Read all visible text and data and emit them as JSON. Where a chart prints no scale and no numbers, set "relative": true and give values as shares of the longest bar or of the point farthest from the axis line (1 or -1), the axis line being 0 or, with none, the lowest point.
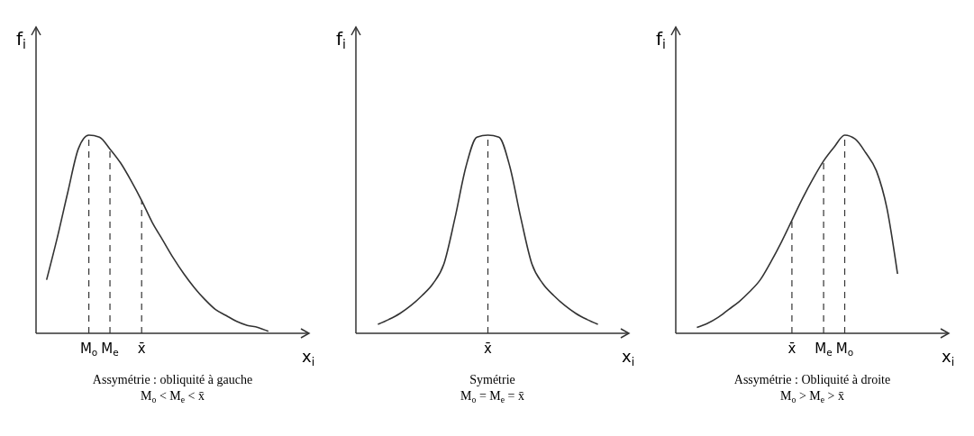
{
  "chart_data": [
    {
      "type": "line",
      "relative": true,
      "xlabel": "x$_{i}$",
      "ylabel": "f$_{i}$",
      "grid": false,
      "marker": "none",
      "line_style": "solid",
      "categories": [
        null,
        null,
        null,
        null,
        null,
        "M$_{o}$",
        null,
        "M$_{e}$",
        null,
        null,
        "x̄",
        null,
        null,
        null,
        null,
        null,
        null,
        null,
        null,
        null,
        null,
        null,
        null,
        null,
        null,
        null
      ],
      "series": [
        {
          "color": "#333333",
          "values": [
            null,
            0.27,
            0.48,
            0.71,
            0.93,
            1,
            0.99,
            0.93,
            0.86,
            0.77,
            0.67,
            0.56,
            0.47,
            0.38,
            0.3,
            0.23,
            0.17,
            0.12,
            0.09,
            0.06,
            0.04,
            0.03,
            0.01,
            null,
            null,
            null
          ]
        }
      ],
      "ref_lines": [
        {
          "axis": "x",
          "value": "M$_{o}$",
          "line_style": "dashed"
        },
        {
          "axis": "x",
          "value": "M$_{e}$",
          "line_style": "dashed"
        },
        {
          "axis": "x",
          "value": "x̄",
          "line_style": "dashed"
        }
      ],
      "annotations": [
        "Assymétrie : obliquité à gauche",
        "M$_{o}$ < M$_{e}$ < x̄"
      ]
    },
    {
      "type": "line",
      "relative": true,
      "xlabel": "x$_{i}$",
      "ylabel": "f$_{i}$",
      "grid": false,
      "marker": "none",
      "line_style": "solid",
      "categories": [
        null,
        null,
        null,
        null,
        null,
        null,
        null,
        null,
        null,
        null,
        null,
        null,
        null,
        null,
        null,
        null,
        null,
        null,
        null,
        null,
        null,
        null,
        null,
        null,
        null
      ],
      "series": [
        {
          "color": "#333333",
          "values": [
            null,
            null,
            0.045,
            0.07,
            0.1,
            0.14,
            0.19,
            0.25,
            0.35,
            0.58,
            0.84,
            0.99,
            1,
            0.99,
            0.84,
            0.58,
            0.35,
            0.25,
            0.19,
            0.14,
            0.1,
            0.07,
            0.045,
            null,
            null
          ]
        }
      ],
      "annotations": [
        {
          "text": "x̄"
        },
        "Symétrie",
        "M$_{o}$ = M$_{e}$ = x̄"
      ]
    },
    {
      "type": "line",
      "relative": true,
      "xlabel": "x$_{i}$",
      "ylabel": "f$_{i}$",
      "grid": false,
      "marker": "none",
      "line_style": "solid",
      "categories": [
        null,
        null,
        null,
        null,
        null,
        null,
        null,
        null,
        null,
        null,
        null,
        "x̄",
        null,
        null,
        "M$_{e}$",
        null,
        "M$_{o}$",
        null,
        null,
        null,
        null,
        null,
        null,
        null,
        null,
        null
      ],
      "series": [
        {
          "color": "#333333",
          "values": [
            null,
            null,
            0.03,
            0.05,
            0.08,
            0.12,
            0.16,
            0.21,
            0.27,
            0.36,
            0.46,
            0.57,
            0.68,
            0.78,
            0.87,
            0.94,
            1,
            0.98,
            0.91,
            0.82,
            0.63,
            0.3,
            null,
            null,
            null,
            null
          ]
        }
      ],
      "ref_lines": [
        {
          "axis": "x",
          "value": "x̄",
          "line_style": "dashed"
        },
        {
          "axis": "x",
          "value": "M$_{e}$",
          "line_style": "dashed"
        },
        {
          "axis": "x",
          "value": "M$_{o}$",
          "line_style": "dashed"
        }
      ],
      "annotations": [
        "Assymétrie : Obliquité à droite",
        "M$_{o}$ > M$_{e}$ > x̄"
      ]
    }
  ]
}
